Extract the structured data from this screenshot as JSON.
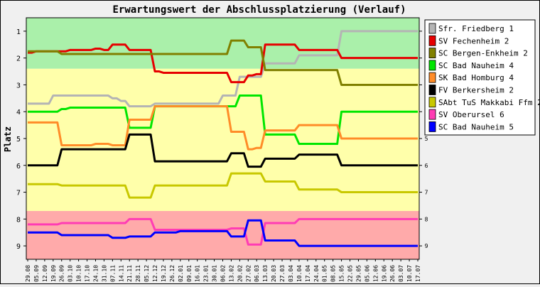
{
  "chart_data": {
    "type": "line",
    "title": "Erwartungswert der Abschlussplatzierung (Verlauf)",
    "ylabel": "Platz",
    "ylim": [
      0.5,
      9.5
    ],
    "y_reversed": true,
    "yticks": [
      1,
      2,
      3,
      4,
      5,
      6,
      7,
      8,
      9
    ],
    "grid": false,
    "legend_position": "right",
    "zones": [
      {
        "from": 0.5,
        "to": 2.4,
        "color": "#aaf0aa"
      },
      {
        "from": 2.4,
        "to": 7.7,
        "color": "#ffffaa"
      },
      {
        "from": 7.7,
        "to": 9.5,
        "color": "#ffaaaa"
      }
    ],
    "x": [
      "29.08",
      "05.09",
      "12.09",
      "19.09",
      "26.09",
      "03.10",
      "10.10",
      "17.10",
      "24.10",
      "31.10",
      "07.11",
      "14.11",
      "21.11",
      "28.11",
      "05.12",
      "12.12",
      "19.12",
      "26.12",
      "02.01",
      "09.01",
      "16.01",
      "23.01",
      "30.01",
      "06.02",
      "13.02",
      "20.02",
      "27.02",
      "06.03",
      "13.03",
      "20.03",
      "27.03",
      "03.04",
      "10.04",
      "17.04",
      "24.04",
      "01.05",
      "08.05",
      "15.05",
      "22.05",
      "29.05",
      "05.06",
      "12.06",
      "19.06",
      "26.06",
      "03.07",
      "10.07",
      "17.07"
    ],
    "series": [
      {
        "name": "Sfr. Friedberg 1",
        "color": "#b4b4b4",
        "values": [
          3.7,
          3.7,
          3.7,
          3.4,
          3.4,
          3.4,
          3.4,
          3.4,
          3.4,
          3.4,
          3.5,
          3.6,
          3.8,
          3.8,
          3.8,
          3.7,
          3.7,
          3.7,
          3.7,
          3.7,
          3.7,
          3.7,
          3.7,
          3.4,
          3.4,
          2.7,
          2.7,
          2.7,
          2.2,
          2.2,
          2.2,
          2.2,
          1.9,
          1.9,
          1.9,
          1.9,
          1.9,
          1.0,
          1.0,
          1.0,
          1.0,
          1.0,
          1.0,
          1.0,
          1.0,
          1.0,
          1.0
        ]
      },
      {
        "name": "SV Fechenheim 2",
        "color": "#e60000",
        "values": [
          1.8,
          1.75,
          1.75,
          1.75,
          1.75,
          1.7,
          1.7,
          1.7,
          1.65,
          1.7,
          1.5,
          1.5,
          1.7,
          1.7,
          1.7,
          2.5,
          2.55,
          2.55,
          2.55,
          2.55,
          2.55,
          2.55,
          2.55,
          2.55,
          2.9,
          2.9,
          2.65,
          2.6,
          1.5,
          1.5,
          1.5,
          1.5,
          1.7,
          1.7,
          1.7,
          1.7,
          1.7,
          2.0,
          2.0,
          2.0,
          2.0,
          2.0,
          2.0,
          2.0,
          2.0,
          2.0,
          2.0
        ]
      },
      {
        "name": "SC Bergen-Enkheim 2",
        "color": "#808000",
        "values": [
          1.75,
          1.75,
          1.75,
          1.75,
          1.85,
          1.85,
          1.85,
          1.85,
          1.85,
          1.85,
          1.85,
          1.85,
          1.85,
          1.85,
          1.85,
          1.85,
          1.85,
          1.85,
          1.85,
          1.85,
          1.85,
          1.85,
          1.85,
          1.85,
          1.35,
          1.35,
          1.6,
          1.6,
          2.45,
          2.45,
          2.45,
          2.45,
          2.45,
          2.45,
          2.45,
          2.45,
          2.45,
          3.0,
          3.0,
          3.0,
          3.0,
          3.0,
          3.0,
          3.0,
          3.0,
          3.0,
          3.0
        ]
      },
      {
        "name": "SC Bad Nauheim 4",
        "color": "#00e600",
        "values": [
          4.0,
          4.0,
          4.0,
          4.0,
          3.9,
          3.85,
          3.85,
          3.85,
          3.85,
          3.85,
          3.85,
          3.85,
          4.6,
          4.6,
          4.6,
          3.8,
          3.8,
          3.8,
          3.8,
          3.8,
          3.8,
          3.8,
          3.8,
          3.8,
          3.8,
          3.4,
          3.4,
          3.4,
          4.85,
          4.85,
          4.85,
          4.85,
          5.2,
          5.2,
          5.2,
          5.2,
          5.2,
          4.0,
          4.0,
          4.0,
          4.0,
          4.0,
          4.0,
          4.0,
          4.0,
          4.0,
          4.0
        ]
      },
      {
        "name": "SK Bad Homburg 4",
        "color": "#ff8c28",
        "values": [
          4.4,
          4.4,
          4.4,
          4.4,
          5.25,
          5.25,
          5.25,
          5.25,
          5.2,
          5.2,
          5.25,
          5.25,
          4.3,
          4.3,
          4.3,
          3.8,
          3.8,
          3.8,
          3.8,
          3.8,
          3.8,
          3.8,
          3.8,
          3.8,
          4.75,
          4.75,
          5.4,
          5.35,
          4.7,
          4.7,
          4.7,
          4.7,
          4.5,
          4.5,
          4.5,
          4.5,
          4.5,
          5.0,
          5.0,
          5.0,
          5.0,
          5.0,
          5.0,
          5.0,
          5.0,
          5.0,
          5.0
        ]
      },
      {
        "name": "FV Berkersheim 2",
        "color": "#000000",
        "values": [
          6.0,
          6.0,
          6.0,
          6.0,
          5.4,
          5.4,
          5.4,
          5.4,
          5.4,
          5.4,
          5.4,
          5.4,
          4.85,
          4.85,
          4.85,
          5.85,
          5.85,
          5.85,
          5.85,
          5.85,
          5.85,
          5.85,
          5.85,
          5.85,
          5.55,
          5.55,
          6.05,
          6.05,
          5.75,
          5.75,
          5.75,
          5.75,
          5.6,
          5.6,
          5.6,
          5.6,
          5.6,
          6.0,
          6.0,
          6.0,
          6.0,
          6.0,
          6.0,
          6.0,
          6.0,
          6.0,
          6.0
        ]
      },
      {
        "name": "SAbt TuS Makkabi Ffm 2",
        "color": "#c8c800",
        "values": [
          6.7,
          6.7,
          6.7,
          6.7,
          6.75,
          6.75,
          6.75,
          6.75,
          6.75,
          6.75,
          6.75,
          6.75,
          7.2,
          7.2,
          7.2,
          6.75,
          6.75,
          6.75,
          6.75,
          6.75,
          6.75,
          6.75,
          6.75,
          6.75,
          6.3,
          6.3,
          6.3,
          6.3,
          6.6,
          6.6,
          6.6,
          6.6,
          6.9,
          6.9,
          6.9,
          6.9,
          6.9,
          7.0,
          7.0,
          7.0,
          7.0,
          7.0,
          7.0,
          7.0,
          7.0,
          7.0,
          7.0
        ]
      },
      {
        "name": "SV Oberursel 6",
        "color": "#ff3cb4",
        "values": [
          8.2,
          8.2,
          8.2,
          8.2,
          8.15,
          8.15,
          8.15,
          8.15,
          8.15,
          8.15,
          8.15,
          8.15,
          8.0,
          8.0,
          8.0,
          8.4,
          8.4,
          8.4,
          8.4,
          8.4,
          8.4,
          8.4,
          8.4,
          8.4,
          8.35,
          8.35,
          8.95,
          8.95,
          8.15,
          8.15,
          8.15,
          8.15,
          8.0,
          8.0,
          8.0,
          8.0,
          8.0,
          8.0,
          8.0,
          8.0,
          8.0,
          8.0,
          8.0,
          8.0,
          8.0,
          8.0,
          8.0
        ]
      },
      {
        "name": "SC Bad Nauheim 5",
        "color": "#0000ff",
        "values": [
          8.5,
          8.5,
          8.5,
          8.5,
          8.6,
          8.6,
          8.6,
          8.6,
          8.6,
          8.6,
          8.7,
          8.7,
          8.65,
          8.65,
          8.65,
          8.5,
          8.5,
          8.5,
          8.45,
          8.45,
          8.45,
          8.45,
          8.45,
          8.45,
          8.65,
          8.65,
          8.05,
          8.05,
          8.8,
          8.8,
          8.8,
          8.8,
          9.0,
          9.0,
          9.0,
          9.0,
          9.0,
          9.0,
          9.0,
          9.0,
          9.0,
          9.0,
          9.0,
          9.0,
          9.0,
          9.0,
          9.0
        ]
      }
    ]
  }
}
